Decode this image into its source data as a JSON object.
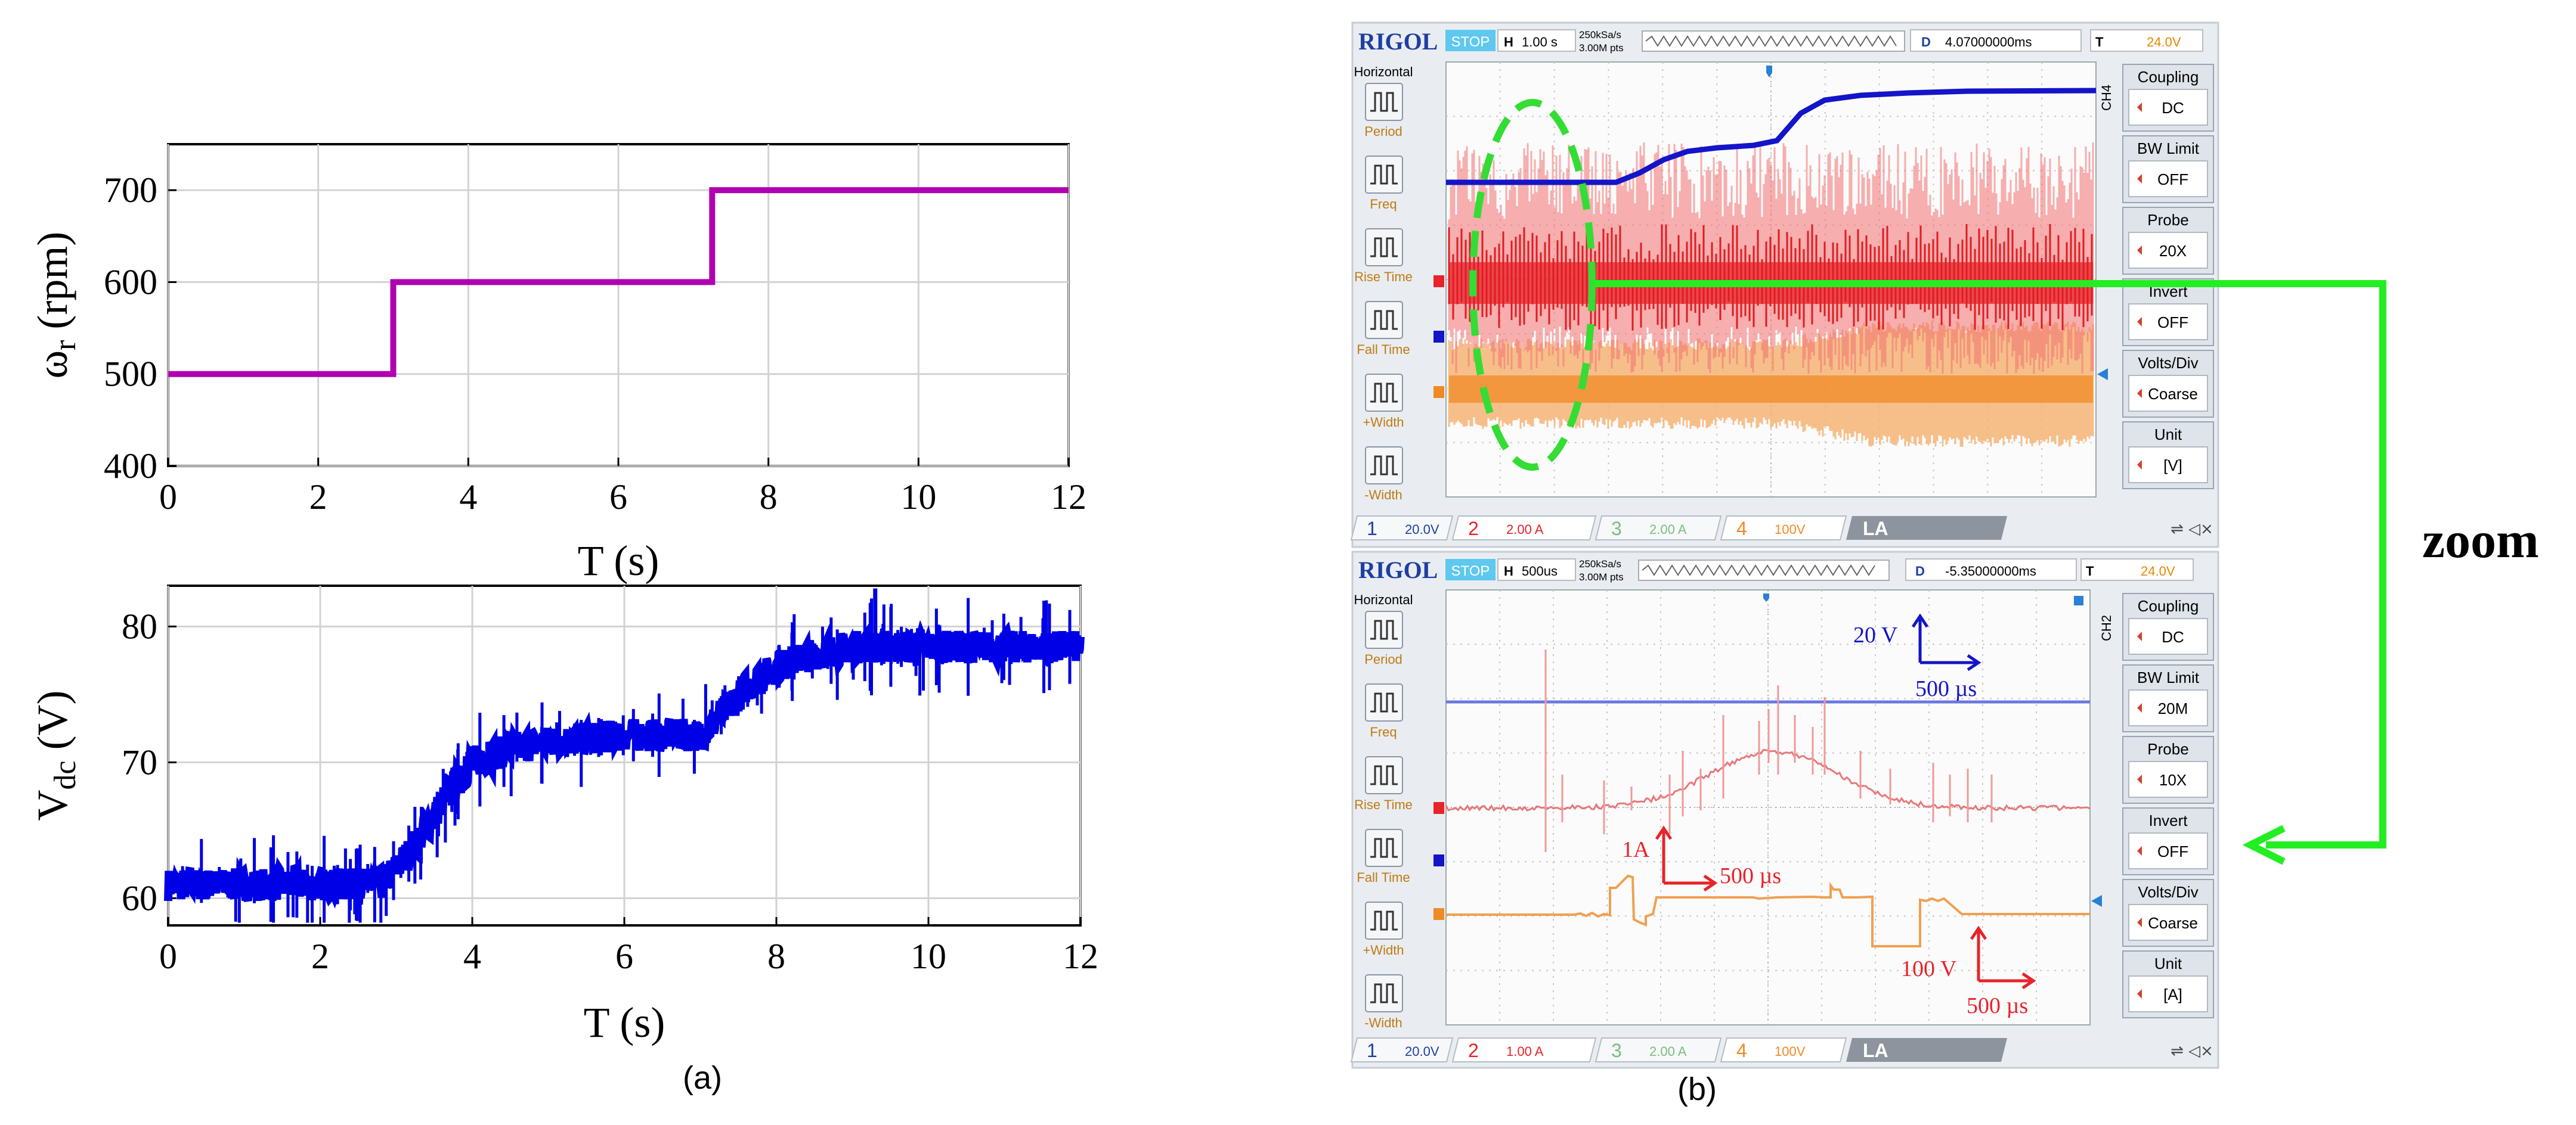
{
  "panels": {
    "a_label": "(a)",
    "b_label": "(b)"
  },
  "chart_data": [
    {
      "type": "line",
      "panel": "a-top",
      "xlabel": "T (s)",
      "ylabel_main": "ω",
      "ylabel_sub": "r",
      "ylabel_unit": " (rpm)",
      "xlim": [
        0,
        12
      ],
      "ylim": [
        400,
        750
      ],
      "xticks": [
        0,
        2,
        4,
        6,
        8,
        10,
        12
      ],
      "yticks": [
        400,
        500,
        600,
        700
      ],
      "grid": true,
      "color": "#b000b0",
      "series": [
        {
          "x": [
            0,
            3,
            3,
            7.25,
            7.25,
            12
          ],
          "y": [
            500,
            500,
            600,
            600,
            700,
            700
          ]
        }
      ]
    },
    {
      "type": "line",
      "panel": "a-bottom",
      "xlabel": "T (s)",
      "ylabel_main": "V",
      "ylabel_sub": "dc",
      "ylabel_unit": " (V)",
      "xlim": [
        0,
        12
      ],
      "ylim": [
        58,
        83
      ],
      "xticks": [
        0,
        2,
        4,
        6,
        8,
        10,
        12
      ],
      "yticks": [
        60,
        70,
        80
      ],
      "grid": true,
      "color": "#0000e6",
      "series": [
        {
          "x": [
            0,
            1,
            2,
            2.8,
            3.2,
            3.6,
            4,
            4.5,
            5,
            6,
            7,
            7.2,
            7.6,
            8,
            8.5,
            9,
            10,
            11,
            12
          ],
          "y": [
            61,
            61,
            61,
            61,
            63.5,
            67,
            70,
            71,
            71.5,
            72,
            72,
            73,
            75.5,
            77,
            78,
            78.5,
            78.5,
            78.5,
            78.5
          ]
        }
      ]
    }
  ],
  "scope_top": {
    "brand": "RIGOL",
    "status": "STOP",
    "h_key": "H",
    "timebase": "1.00 s",
    "rate_line1": "250kSa/s",
    "rate_line2": "3.00M pts",
    "d_key": "D",
    "delay": "4.07000000ms",
    "t_key": "T",
    "trig_level": "24.0V",
    "left_menu_title": "Horizontal",
    "left_menu": [
      "Period",
      "Freq",
      "Rise Time",
      "Fall Time",
      "+Width",
      "-Width"
    ],
    "channel_tag": "CH4",
    "right_menu": [
      {
        "title": "Coupling",
        "value": "DC"
      },
      {
        "title": "BW Limit",
        "value": "OFF"
      },
      {
        "title": "Probe",
        "value": "20X"
      },
      {
        "title": "Invert",
        "value": "OFF"
      },
      {
        "title": "Volts/Div",
        "value": "Coarse"
      },
      {
        "title": "Unit",
        "value": "[V]"
      }
    ],
    "bottom": {
      "ch1": "1",
      "ch1_val": "20.0V",
      "ch2": "2",
      "ch2_val": "2.00 A",
      "ch3": "3",
      "ch3_val": "2.00 A",
      "ch4": "4",
      "ch4_val": "100V",
      "la": "LA"
    }
  },
  "scope_bottom": {
    "brand": "RIGOL",
    "status": "STOP",
    "h_key": "H",
    "timebase": "500us",
    "rate_line1": "250kSa/s",
    "rate_line2": "3.00M pts",
    "d_key": "D",
    "delay": "-5.35000000ms",
    "t_key": "T",
    "trig_level": "24.0V",
    "left_menu_title": "Horizontal",
    "left_menu": [
      "Period",
      "Freq",
      "Rise Time",
      "Fall Time",
      "+Width",
      "-Width"
    ],
    "channel_tag": "CH2",
    "right_menu": [
      {
        "title": "Coupling",
        "value": "DC"
      },
      {
        "title": "BW Limit",
        "value": "20M"
      },
      {
        "title": "Probe",
        "value": "10X"
      },
      {
        "title": "Invert",
        "value": "OFF"
      },
      {
        "title": "Volts/Div",
        "value": "Coarse"
      },
      {
        "title": "Unit",
        "value": "[A]"
      }
    ],
    "bottom": {
      "ch1": "1",
      "ch1_val": "20.0V",
      "ch2": "2",
      "ch2_val": "1.00 A",
      "ch3": "3",
      "ch3_val": "2.00 A",
      "ch4": "4",
      "ch4_val": "100V",
      "la": "LA"
    },
    "scales": {
      "blue_v": "20 V",
      "blue_t": "500 µs",
      "red_a": "1A",
      "red_t": "500 µs",
      "red_v": "100 V",
      "red_t2": "500 µs"
    }
  },
  "zoom_label": "zoom",
  "colors": {
    "omega": "#b000b0",
    "vdc": "#0000e6",
    "ellipse": "#33dd33",
    "arrow": "#22ee22",
    "scope_blue": "#1414c8",
    "scope_red": "#e8232a",
    "scope_orange": "#f08a24"
  }
}
